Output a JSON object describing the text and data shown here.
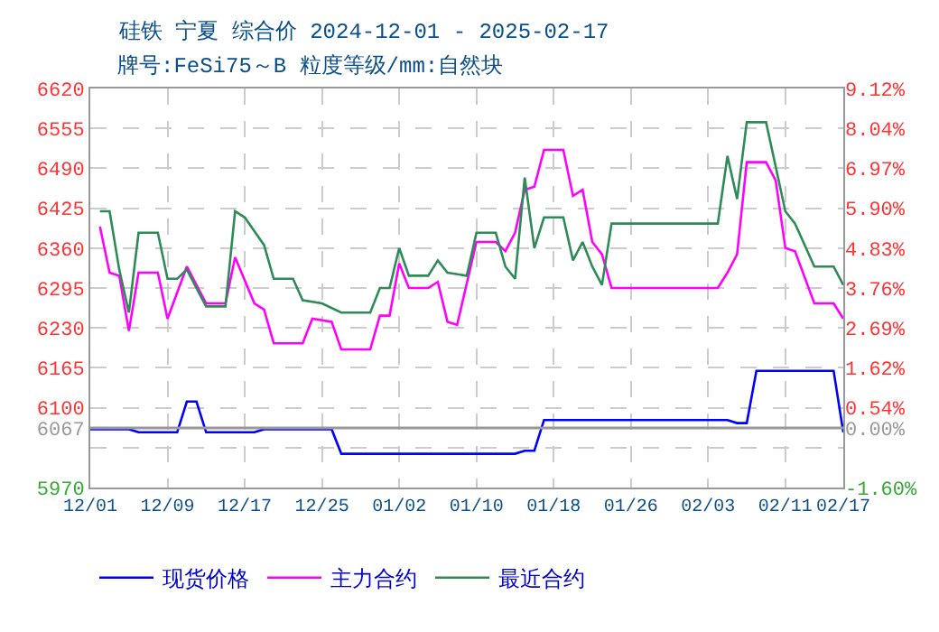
{
  "chart_data": {
    "type": "line",
    "title": "硅铁 宁夏 综合价 2024-12-01 - 2025-02-17",
    "subtitle": "牌号:FeSi75～B 粒度等级/mm:自然块",
    "series": [
      {
        "name": "现货价格",
        "color": "#0000ff",
        "x": [
          "2024-12-01",
          "2024-12-05",
          "2024-12-06",
          "2024-12-10",
          "2024-12-11",
          "2024-12-12",
          "2024-12-13",
          "2024-12-18",
          "2024-12-19",
          "2024-12-26",
          "2024-12-27",
          "2025-01-14",
          "2025-01-15",
          "2025-01-16",
          "2025-01-17",
          "2025-02-05",
          "2025-02-06",
          "2025-02-07",
          "2025-02-08",
          "2025-02-16",
          "2025-02-17"
        ],
        "values": [
          6065,
          6065,
          6060,
          6060,
          6110,
          6110,
          6060,
          6060,
          6065,
          6065,
          6025,
          6025,
          6030,
          6030,
          6080,
          6080,
          6075,
          6075,
          6160,
          6160,
          6060
        ]
      },
      {
        "name": "主力合约",
        "color": "#ff00ff",
        "x": [
          "2024-12-02",
          "2024-12-03",
          "2024-12-04",
          "2024-12-05",
          "2024-12-06",
          "2024-12-08",
          "2024-12-09",
          "2024-12-11",
          "2024-12-13",
          "2024-12-15",
          "2024-12-16",
          "2024-12-18",
          "2024-12-19",
          "2024-12-20",
          "2024-12-23",
          "2024-12-24",
          "2024-12-26",
          "2024-12-27",
          "2024-12-30",
          "2024-12-31",
          "2025-01-01",
          "2025-01-02",
          "2025-01-03",
          "2025-01-05",
          "2025-01-06",
          "2025-01-07",
          "2025-01-08",
          "2025-01-10",
          "2025-01-12",
          "2025-01-13",
          "2025-01-14",
          "2025-01-15",
          "2025-01-16",
          "2025-01-17",
          "2025-01-19",
          "2025-01-20",
          "2025-01-21",
          "2025-01-22",
          "2025-01-23",
          "2025-01-24",
          "2025-02-04",
          "2025-02-05",
          "2025-02-06",
          "2025-02-07",
          "2025-02-09",
          "2025-02-10",
          "2025-02-11",
          "2025-02-12",
          "2025-02-14",
          "2025-02-16",
          "2025-02-17"
        ],
        "values": [
          6395,
          6320,
          6315,
          6225,
          6320,
          6320,
          6245,
          6330,
          6270,
          6270,
          6345,
          6270,
          6260,
          6205,
          6205,
          6245,
          6240,
          6195,
          6195,
          6250,
          6250,
          6335,
          6295,
          6295,
          6305,
          6240,
          6235,
          6370,
          6370,
          6355,
          6385,
          6455,
          6460,
          6520,
          6520,
          6445,
          6455,
          6370,
          6350,
          6295,
          6295,
          6320,
          6350,
          6500,
          6500,
          6470,
          6360,
          6355,
          6270,
          6270,
          6245
        ]
      },
      {
        "name": "最近合约",
        "color": "#2e8b57",
        "x": [
          "2024-12-02",
          "2024-12-03",
          "2024-12-04",
          "2024-12-05",
          "2024-12-06",
          "2024-12-08",
          "2024-12-09",
          "2024-12-10",
          "2024-12-11",
          "2024-12-13",
          "2024-12-15",
          "2024-12-16",
          "2024-12-17",
          "2024-12-19",
          "2024-12-20",
          "2024-12-22",
          "2024-12-23",
          "2024-12-25",
          "2024-12-27",
          "2024-12-30",
          "2024-12-31",
          "2025-01-01",
          "2025-01-02",
          "2025-01-03",
          "2025-01-05",
          "2025-01-06",
          "2025-01-07",
          "2025-01-09",
          "2025-01-10",
          "2025-01-12",
          "2025-01-13",
          "2025-01-14",
          "2025-01-15",
          "2025-01-16",
          "2025-01-17",
          "2025-01-19",
          "2025-01-20",
          "2025-01-21",
          "2025-01-22",
          "2025-01-23",
          "2025-01-24",
          "2025-02-04",
          "2025-02-05",
          "2025-02-06",
          "2025-02-07",
          "2025-02-09",
          "2025-02-11",
          "2025-02-12",
          "2025-02-14",
          "2025-02-16",
          "2025-02-17"
        ],
        "values": [
          6420,
          6420,
          6325,
          6255,
          6385,
          6385,
          6310,
          6310,
          6325,
          6265,
          6265,
          6420,
          6410,
          6365,
          6310,
          6310,
          6275,
          6270,
          6255,
          6255,
          6295,
          6295,
          6360,
          6315,
          6315,
          6340,
          6320,
          6315,
          6385,
          6385,
          6330,
          6310,
          6475,
          6360,
          6410,
          6410,
          6340,
          6370,
          6330,
          6300,
          6400,
          6400,
          6510,
          6440,
          6565,
          6565,
          6420,
          6400,
          6330,
          6330,
          6300
        ]
      }
    ],
    "xlim": [
      "2024-12-01",
      "2025-02-17"
    ],
    "xticks": [
      {
        "value": "2024-12-01",
        "label": "12/01"
      },
      {
        "value": "2024-12-09",
        "label": "12/09"
      },
      {
        "value": "2024-12-17",
        "label": "12/17"
      },
      {
        "value": "2024-12-25",
        "label": "12/25"
      },
      {
        "value": "2025-01-02",
        "label": "01/02"
      },
      {
        "value": "2025-01-10",
        "label": "01/10"
      },
      {
        "value": "2025-01-18",
        "label": "01/18"
      },
      {
        "value": "2025-01-26",
        "label": "01/26"
      },
      {
        "value": "2025-02-03",
        "label": "02/03"
      },
      {
        "value": "2025-02-11",
        "label": "02/11"
      },
      {
        "value": "2025-02-17",
        "label": "02/17"
      }
    ],
    "ylim": [
      5970,
      6620
    ],
    "yticks": [
      6620,
      6555,
      6490,
      6425,
      6360,
      6295,
      6230,
      6165,
      6100,
      6067,
      {
        "value": 6035,
        "label": null
      },
      5970
    ],
    "y2lim": [
      -1.6,
      9.12
    ],
    "y2ticks": [
      {
        "value": 9.12,
        "label": "9.12%"
      },
      {
        "value": 8.04,
        "label": "8.04%"
      },
      {
        "value": 6.97,
        "label": "6.97%"
      },
      {
        "value": 5.9,
        "label": "5.90%"
      },
      {
        "value": 4.83,
        "label": "4.83%"
      },
      {
        "value": 3.76,
        "label": "3.76%"
      },
      {
        "value": 2.69,
        "label": "2.69%"
      },
      {
        "value": 1.62,
        "label": "1.62%"
      },
      {
        "value": 0.54,
        "label": "0.54%"
      },
      {
        "value": 0.0,
        "label": "0.00%"
      },
      {
        "value": -1.6,
        "label": "-1.60%"
      }
    ],
    "ref_lines": [
      {
        "axis": "y",
        "value": 6067,
        "color": "#999999"
      }
    ],
    "grid": true,
    "legend": "bottom",
    "line_style": "solid",
    "marker": "none"
  }
}
